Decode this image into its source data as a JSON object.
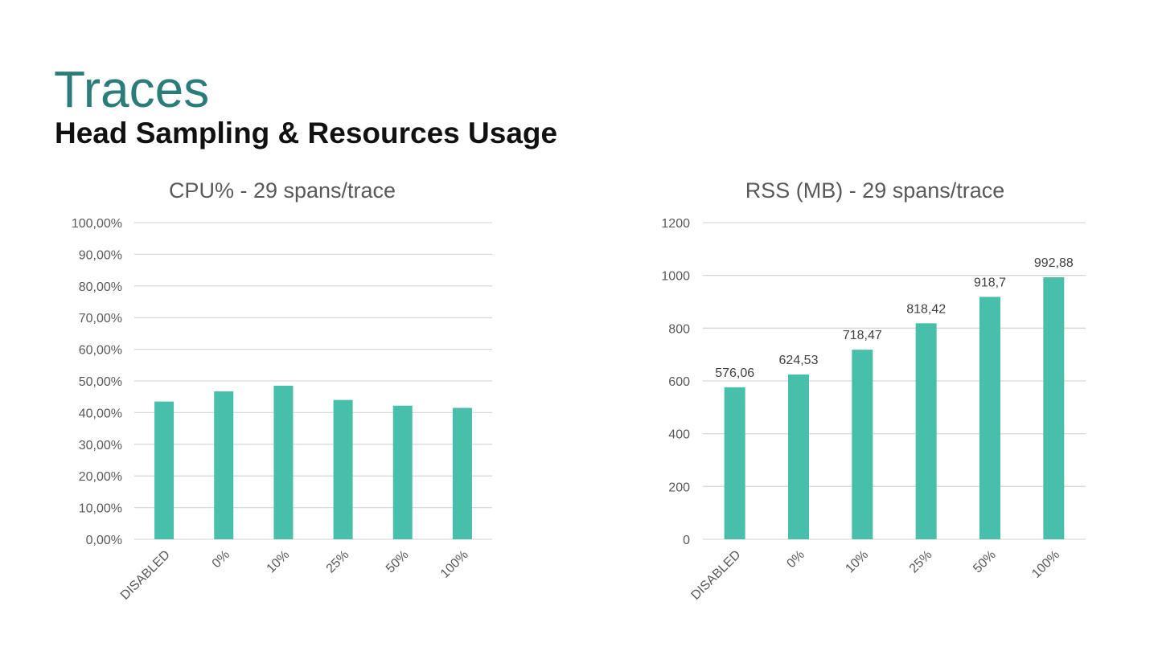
{
  "slide": {
    "title": "Traces",
    "subtitle": "Head Sampling & Resources Usage"
  },
  "colors": {
    "title": "#2a7d79",
    "bar": "#48bfab",
    "grid": "#d9d9d9",
    "text": "#595959"
  },
  "chart_data": [
    {
      "type": "bar",
      "title": "CPU% - 29 spans/trace",
      "categories": [
        "DISABLED",
        "0%",
        "10%",
        "25%",
        "50%",
        "100%"
      ],
      "values": [
        43.5,
        46.7,
        48.5,
        44.0,
        42.2,
        41.5
      ],
      "ylim": [
        0,
        100
      ],
      "yticks": [
        "0,00%",
        "10,00%",
        "20,00%",
        "30,00%",
        "40,00%",
        "50,00%",
        "60,00%",
        "70,00%",
        "80,00%",
        "90,00%",
        "100,00%"
      ],
      "data_labels": [],
      "grid": true,
      "legend": "none"
    },
    {
      "type": "bar",
      "title": "RSS (MB) - 29 spans/trace",
      "categories": [
        "DISABLED",
        "0%",
        "10%",
        "25%",
        "50%",
        "100%"
      ],
      "values": [
        576.06,
        624.53,
        718.47,
        818.42,
        918.7,
        992.88
      ],
      "ylim": [
        0,
        1200
      ],
      "yticks": [
        "0",
        "200",
        "400",
        "600",
        "800",
        "1000",
        "1200"
      ],
      "data_labels": [
        "576,06",
        "624,53",
        "718,47",
        "818,42",
        "918,7",
        "992,88"
      ],
      "grid": true,
      "legend": "none"
    }
  ]
}
